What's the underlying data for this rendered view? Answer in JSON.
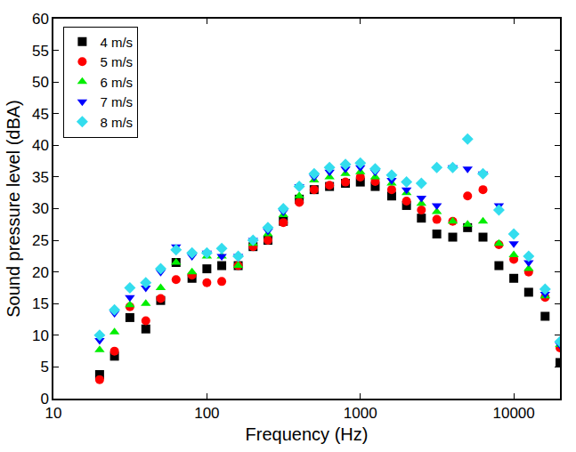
{
  "chart_data": {
    "type": "scatter",
    "x_label": "Frequency (Hz)",
    "y_label": "Sound pressure level (dBA)",
    "log": "x",
    "grid": false,
    "legend": "upper left",
    "xlim": [
      10,
      20000
    ],
    "xticks": [
      10,
      100,
      1000,
      10000
    ],
    "ylim": [
      0,
      60
    ],
    "yticks": [
      0,
      5,
      10,
      15,
      20,
      25,
      30,
      35,
      40,
      45,
      50,
      55,
      60
    ],
    "x": [
      20,
      25,
      31.5,
      40,
      50,
      63,
      80,
      100,
      125,
      160,
      200,
      250,
      315,
      400,
      500,
      630,
      800,
      1000,
      1250,
      1600,
      2000,
      2500,
      3150,
      4000,
      5000,
      6300,
      8000,
      10000,
      12500,
      16000,
      20000
    ],
    "series": [
      {
        "name": "4 m/s",
        "color": "#000000",
        "marker": "square",
        "values": [
          3.8,
          6.7,
          12.8,
          11,
          15.5,
          21.5,
          19,
          20.5,
          21,
          21,
          24,
          25,
          28,
          31.5,
          33,
          33.5,
          34,
          34.2,
          33.5,
          32,
          30.5,
          28.5,
          26,
          25.5,
          27,
          25.5,
          21,
          19,
          16.8,
          13,
          5.7
        ]
      },
      {
        "name": "5 m/s",
        "color": "#ff0000",
        "marker": "circle",
        "values": [
          3,
          7.5,
          14.5,
          12.3,
          15.8,
          18.8,
          19.5,
          18.3,
          18.5,
          21,
          24,
          25,
          27.8,
          31,
          33,
          33.7,
          34.2,
          35,
          34.3,
          33,
          31.2,
          29.8,
          28.3,
          28,
          32,
          33,
          24.3,
          22,
          20,
          16,
          8
        ]
      },
      {
        "name": "6 m/s",
        "color": "#00ee00",
        "marker": "triangle-up",
        "values": [
          7.7,
          10.5,
          14.8,
          15,
          17.5,
          21.5,
          20,
          22.5,
          22.5,
          21,
          24.5,
          26,
          29,
          32,
          34.5,
          35,
          35.5,
          35.8,
          35,
          34,
          32.5,
          30.8,
          29.5,
          28,
          27.5,
          28,
          24.5,
          22.7,
          20.5,
          16.2,
          8.5
        ]
      },
      {
        "name": "7 m/s",
        "color": "#0000ff",
        "marker": "triangle-down",
        "values": [
          9.2,
          13.5,
          16,
          17.5,
          20,
          24,
          22.5,
          23,
          22.5,
          22.5,
          25,
          26.5,
          29.5,
          33.5,
          35,
          35.8,
          36.3,
          36.5,
          35.8,
          34.5,
          33,
          31.7,
          30.5,
          36.5,
          36.3,
          35.5,
          30.5,
          24.5,
          21.5,
          16.5,
          8.5
        ]
      },
      {
        "name": "8 m/s",
        "color": "#33ddee",
        "marker": "diamond",
        "values": [
          10,
          14,
          17.5,
          18.3,
          20.5,
          23.5,
          23,
          23,
          23.7,
          22.5,
          25,
          27,
          30,
          33.5,
          35.5,
          36.5,
          37,
          37.2,
          36.3,
          35.3,
          34.2,
          34,
          36.5,
          36.5,
          41,
          35.5,
          29.8,
          26,
          22.5,
          17.3,
          9
        ]
      }
    ]
  }
}
